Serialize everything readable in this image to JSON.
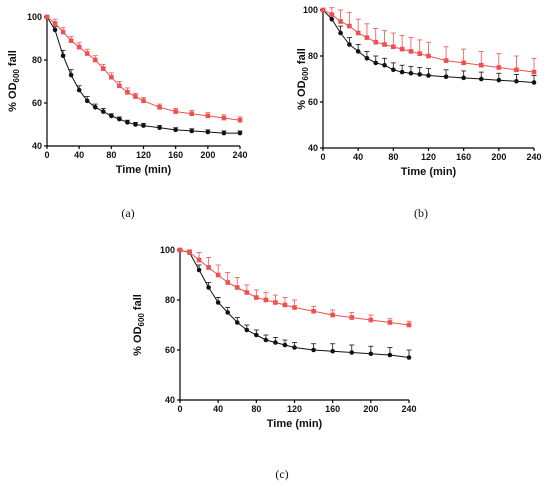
{
  "chart_data": [
    {
      "type": "scatter",
      "panel_label": "(a)",
      "xlabel": "Time (min)",
      "ylabel_pre": "% OD",
      "ylabel_sub": "600",
      "ylabel_post": " fall",
      "xlim": [
        0,
        240
      ],
      "ylim": [
        40,
        100
      ],
      "xticks": [
        0,
        40,
        80,
        120,
        160,
        200,
        240
      ],
      "yticks": [
        40,
        60,
        80,
        100
      ],
      "grid": false,
      "colors": {
        "black": "#111111",
        "red": "#f05050"
      },
      "series": [
        {
          "color_key": "black",
          "x": [
            0,
            10,
            20,
            30,
            40,
            50,
            60,
            70,
            80,
            90,
            100,
            110,
            120,
            140,
            160,
            180,
            200,
            220,
            240
          ],
          "y": [
            100,
            94,
            82,
            73,
            66,
            61,
            58,
            56,
            54,
            52.5,
            51,
            50,
            49.5,
            48.5,
            47.5,
            47,
            46.5,
            46,
            46
          ],
          "err": [
            0.5,
            1.5,
            2.5,
            2.5,
            2,
            2,
            1.5,
            1.5,
            1,
            1,
            1,
            1,
            1,
            1,
            1,
            1,
            1,
            1,
            1
          ]
        },
        {
          "color_key": "red",
          "x": [
            0,
            10,
            20,
            30,
            40,
            50,
            60,
            70,
            80,
            90,
            100,
            110,
            120,
            140,
            160,
            180,
            200,
            220,
            240
          ],
          "y": [
            100,
            97,
            93,
            89,
            86,
            83,
            80,
            76,
            72,
            68,
            65,
            63,
            61,
            58,
            56,
            55,
            54,
            53,
            52
          ],
          "err": [
            0.5,
            2,
            2,
            2,
            2,
            2,
            2,
            2,
            2,
            2,
            2,
            1.5,
            1.5,
            1.5,
            1.5,
            1.5,
            1.5,
            1.5,
            1.5
          ]
        }
      ]
    },
    {
      "type": "scatter",
      "panel_label": "(b)",
      "xlabel": "Time (min)",
      "ylabel_pre": "% OD",
      "ylabel_sub": "600",
      "ylabel_post": " fall",
      "xlim": [
        0,
        240
      ],
      "ylim": [
        40,
        100
      ],
      "xticks": [
        0,
        40,
        80,
        120,
        160,
        200,
        240
      ],
      "yticks": [
        40,
        60,
        80,
        100
      ],
      "grid": false,
      "colors": {
        "black": "#111111",
        "red": "#f05050"
      },
      "series": [
        {
          "color_key": "black",
          "x": [
            0,
            10,
            20,
            30,
            40,
            50,
            60,
            70,
            80,
            90,
            100,
            110,
            120,
            140,
            160,
            180,
            200,
            220,
            240
          ],
          "y": [
            100,
            96,
            90,
            85,
            82,
            79,
            77,
            76,
            74,
            73,
            72.5,
            72,
            71.5,
            71,
            70.5,
            70,
            69.5,
            69,
            68.5
          ],
          "err": [
            0.5,
            2,
            3,
            3,
            3,
            3,
            3,
            3,
            3,
            3,
            3,
            3,
            3,
            3,
            3,
            3,
            3,
            3,
            3
          ]
        },
        {
          "color_key": "red",
          "x": [
            0,
            10,
            20,
            30,
            40,
            50,
            60,
            70,
            80,
            90,
            100,
            110,
            120,
            140,
            160,
            180,
            200,
            220,
            240
          ],
          "y": [
            100,
            98,
            95,
            93,
            90,
            88,
            86,
            85,
            84,
            83,
            82,
            81,
            80,
            78,
            77,
            76,
            75,
            74,
            73
          ],
          "err": [
            0.5,
            3,
            5,
            6,
            6,
            6,
            6,
            6,
            6,
            6,
            6,
            6,
            6,
            6,
            6,
            6,
            6,
            6,
            6
          ]
        }
      ]
    },
    {
      "type": "scatter",
      "panel_label": "(c)",
      "xlabel": "Time (min)",
      "ylabel_pre": "% OD",
      "ylabel_sub": "600",
      "ylabel_post": " fall",
      "xlim": [
        0,
        240
      ],
      "ylim": [
        40,
        100
      ],
      "xticks": [
        0,
        40,
        80,
        120,
        160,
        200,
        240
      ],
      "yticks": [
        40,
        60,
        80,
        100
      ],
      "grid": false,
      "colors": {
        "black": "#111111",
        "red": "#f05050"
      },
      "series": [
        {
          "color_key": "black",
          "x": [
            0,
            10,
            20,
            30,
            40,
            50,
            60,
            70,
            80,
            90,
            100,
            110,
            120,
            140,
            160,
            180,
            200,
            220,
            240
          ],
          "y": [
            100,
            99,
            92,
            85,
            79,
            75,
            71,
            68,
            66,
            64,
            63,
            62,
            61,
            60,
            59.5,
            59,
            58.5,
            58,
            57
          ],
          "err": [
            0.5,
            1,
            2,
            2,
            2,
            2,
            2,
            2,
            2,
            2,
            2,
            2,
            2,
            2.5,
            3,
            3,
            3,
            3,
            3
          ]
        },
        {
          "color_key": "red",
          "x": [
            0,
            10,
            20,
            30,
            40,
            50,
            60,
            70,
            80,
            90,
            100,
            110,
            120,
            140,
            160,
            180,
            200,
            220,
            240
          ],
          "y": [
            100,
            99,
            96,
            93,
            90,
            87,
            85,
            83,
            81,
            80,
            79,
            78,
            77,
            75.5,
            74,
            73,
            72,
            71,
            70
          ],
          "err": [
            0.5,
            1,
            3,
            4,
            4,
            4,
            4,
            3,
            3,
            3,
            3,
            3,
            3,
            2,
            2,
            2,
            2,
            1.5,
            1.5
          ]
        }
      ]
    }
  ]
}
